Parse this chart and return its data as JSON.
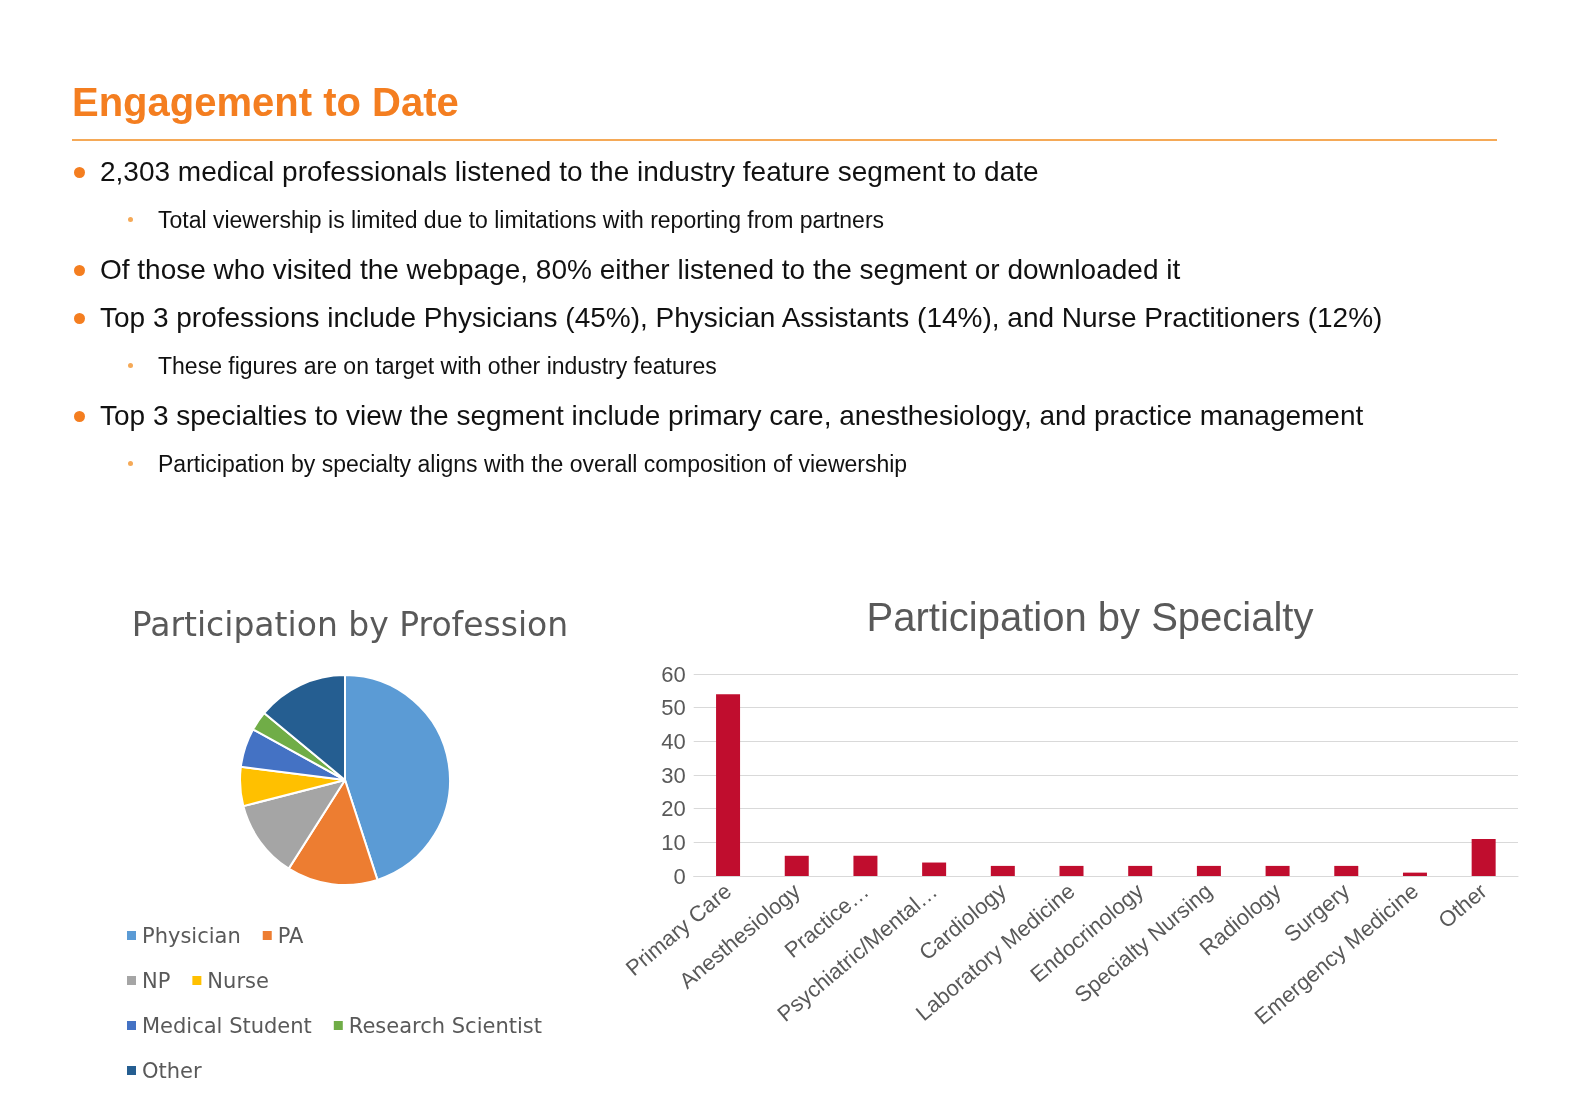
{
  "chart_data": [
    {
      "type": "other",
      "title": "Engagement to Date",
      "annotations": [
        "2,303 medical professionals listened to the industry feature segment to date",
        "Total viewership is limited due to limitations with reporting from partners",
        "Of those who visited the webpage, 80% either listened to the segment or downloaded it",
        "Top 3 professions include Physicians (45%), Physician Assistants (14%), and Nurse Practitioners (12%)",
        "These figures are on target with other industry features",
        "Top 3 specialties to view the segment include primary care, anesthesiology, and practice management",
        "Participation by specialty aligns with the overall composition of viewership"
      ]
    },
    {
      "type": "pie",
      "title": "Participation by Profession",
      "categories": [
        "Physician",
        "PA",
        "NP",
        "Nurse",
        "Medical Student",
        "Research Scientist",
        "Other"
      ],
      "values": [
        45,
        14,
        12,
        6,
        6,
        3,
        14
      ],
      "colors": [
        "#5b9bd5",
        "#ed7d31",
        "#a5a5a5",
        "#ffc000",
        "#4472c4",
        "#70ad47",
        "#255e91"
      ],
      "legend": "bottom"
    },
    {
      "type": "bar",
      "title": "Participation by Specialty",
      "categories": [
        "Primary Care",
        "Anesthesiology",
        "Practice…",
        "Psychiatric/Mental…",
        "Cardiology",
        "Laboratory Medicine",
        "Endocrinology",
        "Specialty Nursing",
        "Radiology",
        "Surgery",
        "Emergency Medicine",
        "Other"
      ],
      "values": [
        54,
        6,
        6,
        4,
        3,
        3,
        3,
        3,
        3,
        3,
        1,
        11
      ],
      "color": "#c00d2e",
      "ylim": [
        0,
        60
      ],
      "yticks": [
        0,
        10,
        20,
        30,
        40,
        50,
        60
      ],
      "grid": "y",
      "legend": false
    }
  ]
}
